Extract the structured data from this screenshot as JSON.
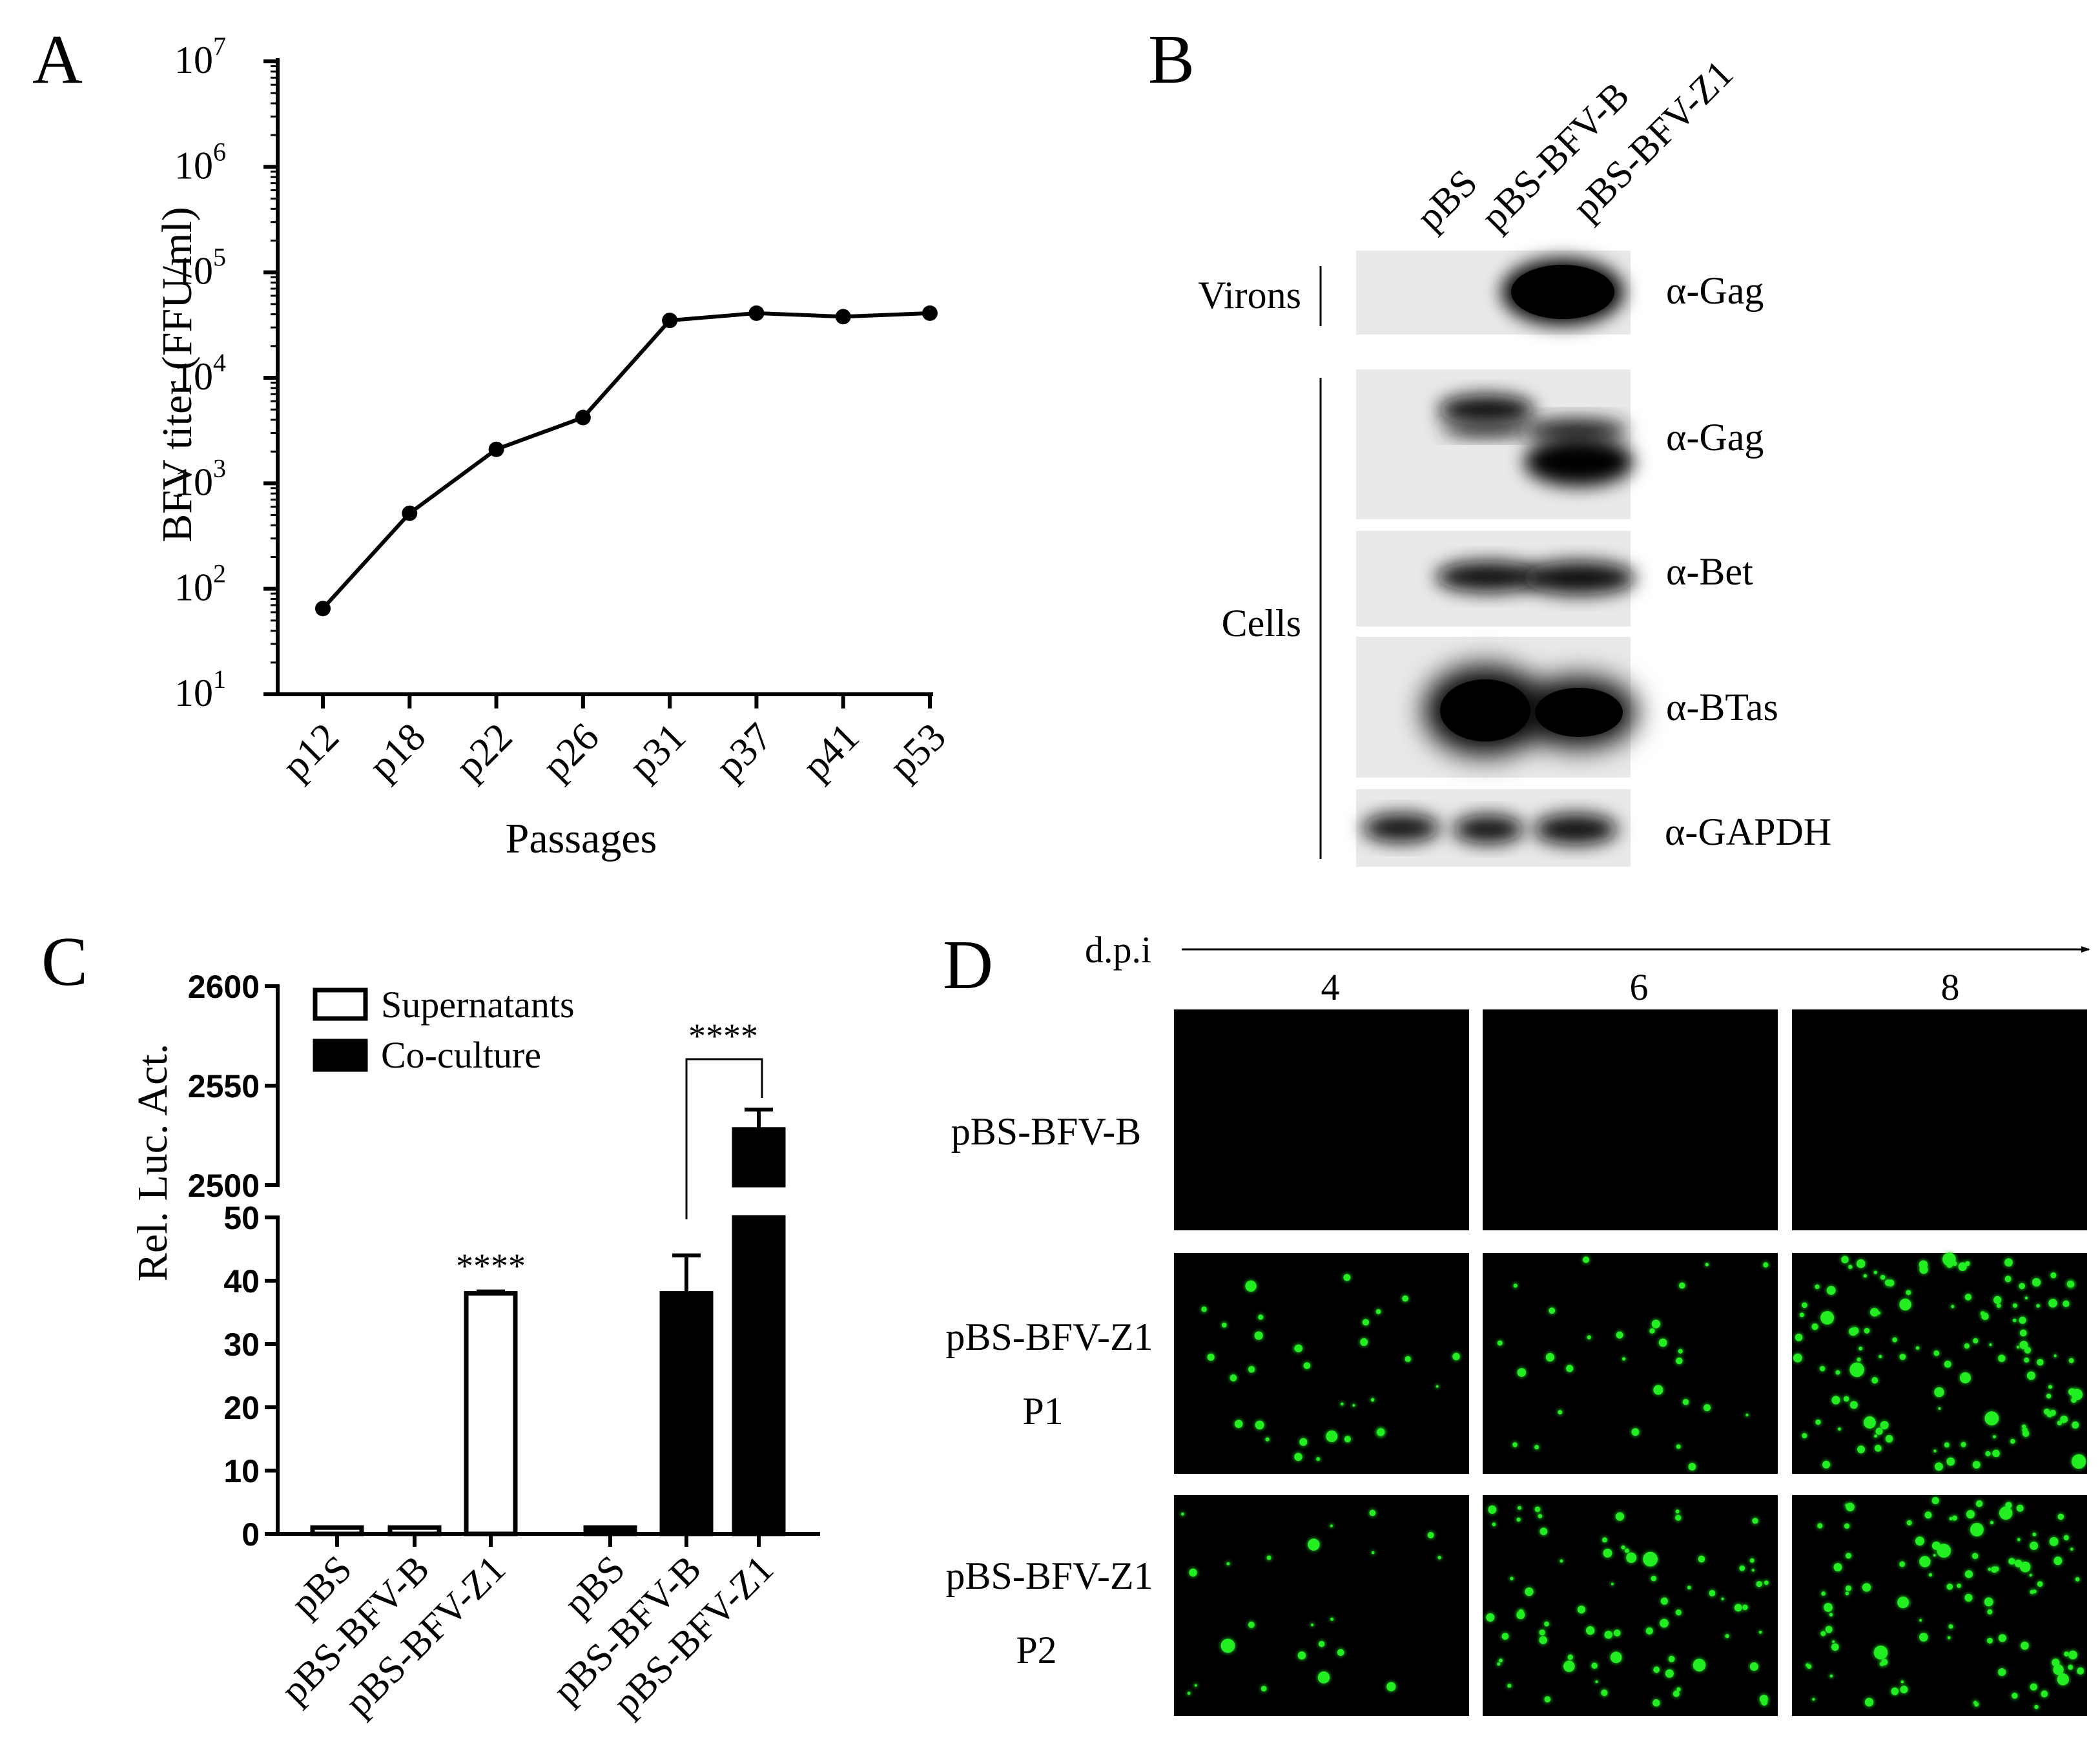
{
  "panel_letters": [
    "A",
    "B",
    "C",
    "D"
  ],
  "chart_data": [
    {
      "type": "line",
      "panel": "A",
      "xlabel": "Passages",
      "ylabel": "BFV titer (FFU/ml)",
      "yscale": "log",
      "ylim": [
        10,
        10000000
      ],
      "y_ticks": [
        {
          "base": "10",
          "exp": "1"
        },
        {
          "base": "10",
          "exp": "2"
        },
        {
          "base": "10",
          "exp": "3"
        },
        {
          "base": "10",
          "exp": "4"
        },
        {
          "base": "10",
          "exp": "5"
        },
        {
          "base": "10",
          "exp": "6"
        },
        {
          "base": "10",
          "exp": "7"
        }
      ],
      "categories": [
        "p12",
        "p18",
        "p22",
        "p26",
        "p31",
        "p37",
        "p41",
        "p53"
      ],
      "values": [
        65,
        520,
        2100,
        4200,
        35000,
        41000,
        38000,
        41000
      ],
      "color": "#000000"
    },
    {
      "type": "bar",
      "panel": "C",
      "ylabel": "Rel. Luc. Act.",
      "y_axis_break": true,
      "lower_ylim": [
        0,
        50
      ],
      "lower_ticks": [
        "0",
        "10",
        "20",
        "30",
        "40",
        "50"
      ],
      "upper_ylim": [
        2500,
        2600
      ],
      "upper_ticks": [
        "2500",
        "2550",
        "2600"
      ],
      "legend": [
        {
          "name": "Supernatants",
          "fill": "#ffffff"
        },
        {
          "name": "Co-culture",
          "fill": "#000000"
        }
      ],
      "legend_position": "top-left",
      "groups": [
        {
          "series": "Supernatants",
          "categories": [
            "pBS",
            "pBS-BFV-B",
            "pBS-BFV-Z1"
          ],
          "values": [
            1,
            1,
            38
          ],
          "errors": [
            0,
            0,
            0.3
          ]
        },
        {
          "series": "Co-culture",
          "categories": [
            "pBS",
            "pBS-BFV-B",
            "pBS-BFV-Z1"
          ],
          "values": [
            1,
            38,
            2528
          ],
          "errors": [
            0,
            6,
            10
          ]
        }
      ],
      "annotations": [
        "****",
        "****"
      ]
    }
  ],
  "blot": {
    "lanes": [
      "pBS",
      "pBS-BFV-B",
      "pBS-BFV-Z1"
    ],
    "groups": [
      "Virons",
      "Cells"
    ],
    "antibodies": [
      "α-Gag",
      "α-Gag",
      "α-Bet",
      "α-BTas",
      "α-GAPDH"
    ]
  },
  "micro": {
    "axis_label": "d.p.i",
    "days": [
      "4",
      "6",
      "8"
    ],
    "row_labels": [
      {
        "line1": "pBS-BFV-B",
        "line2": ""
      },
      {
        "line1": "pBS-BFV-Z1",
        "line2": "P1"
      },
      {
        "line1": "pBS-BFV-Z1",
        "line2": "P2"
      }
    ],
    "colors": {
      "background": "#000000",
      "signal": "#22ee22"
    }
  }
}
